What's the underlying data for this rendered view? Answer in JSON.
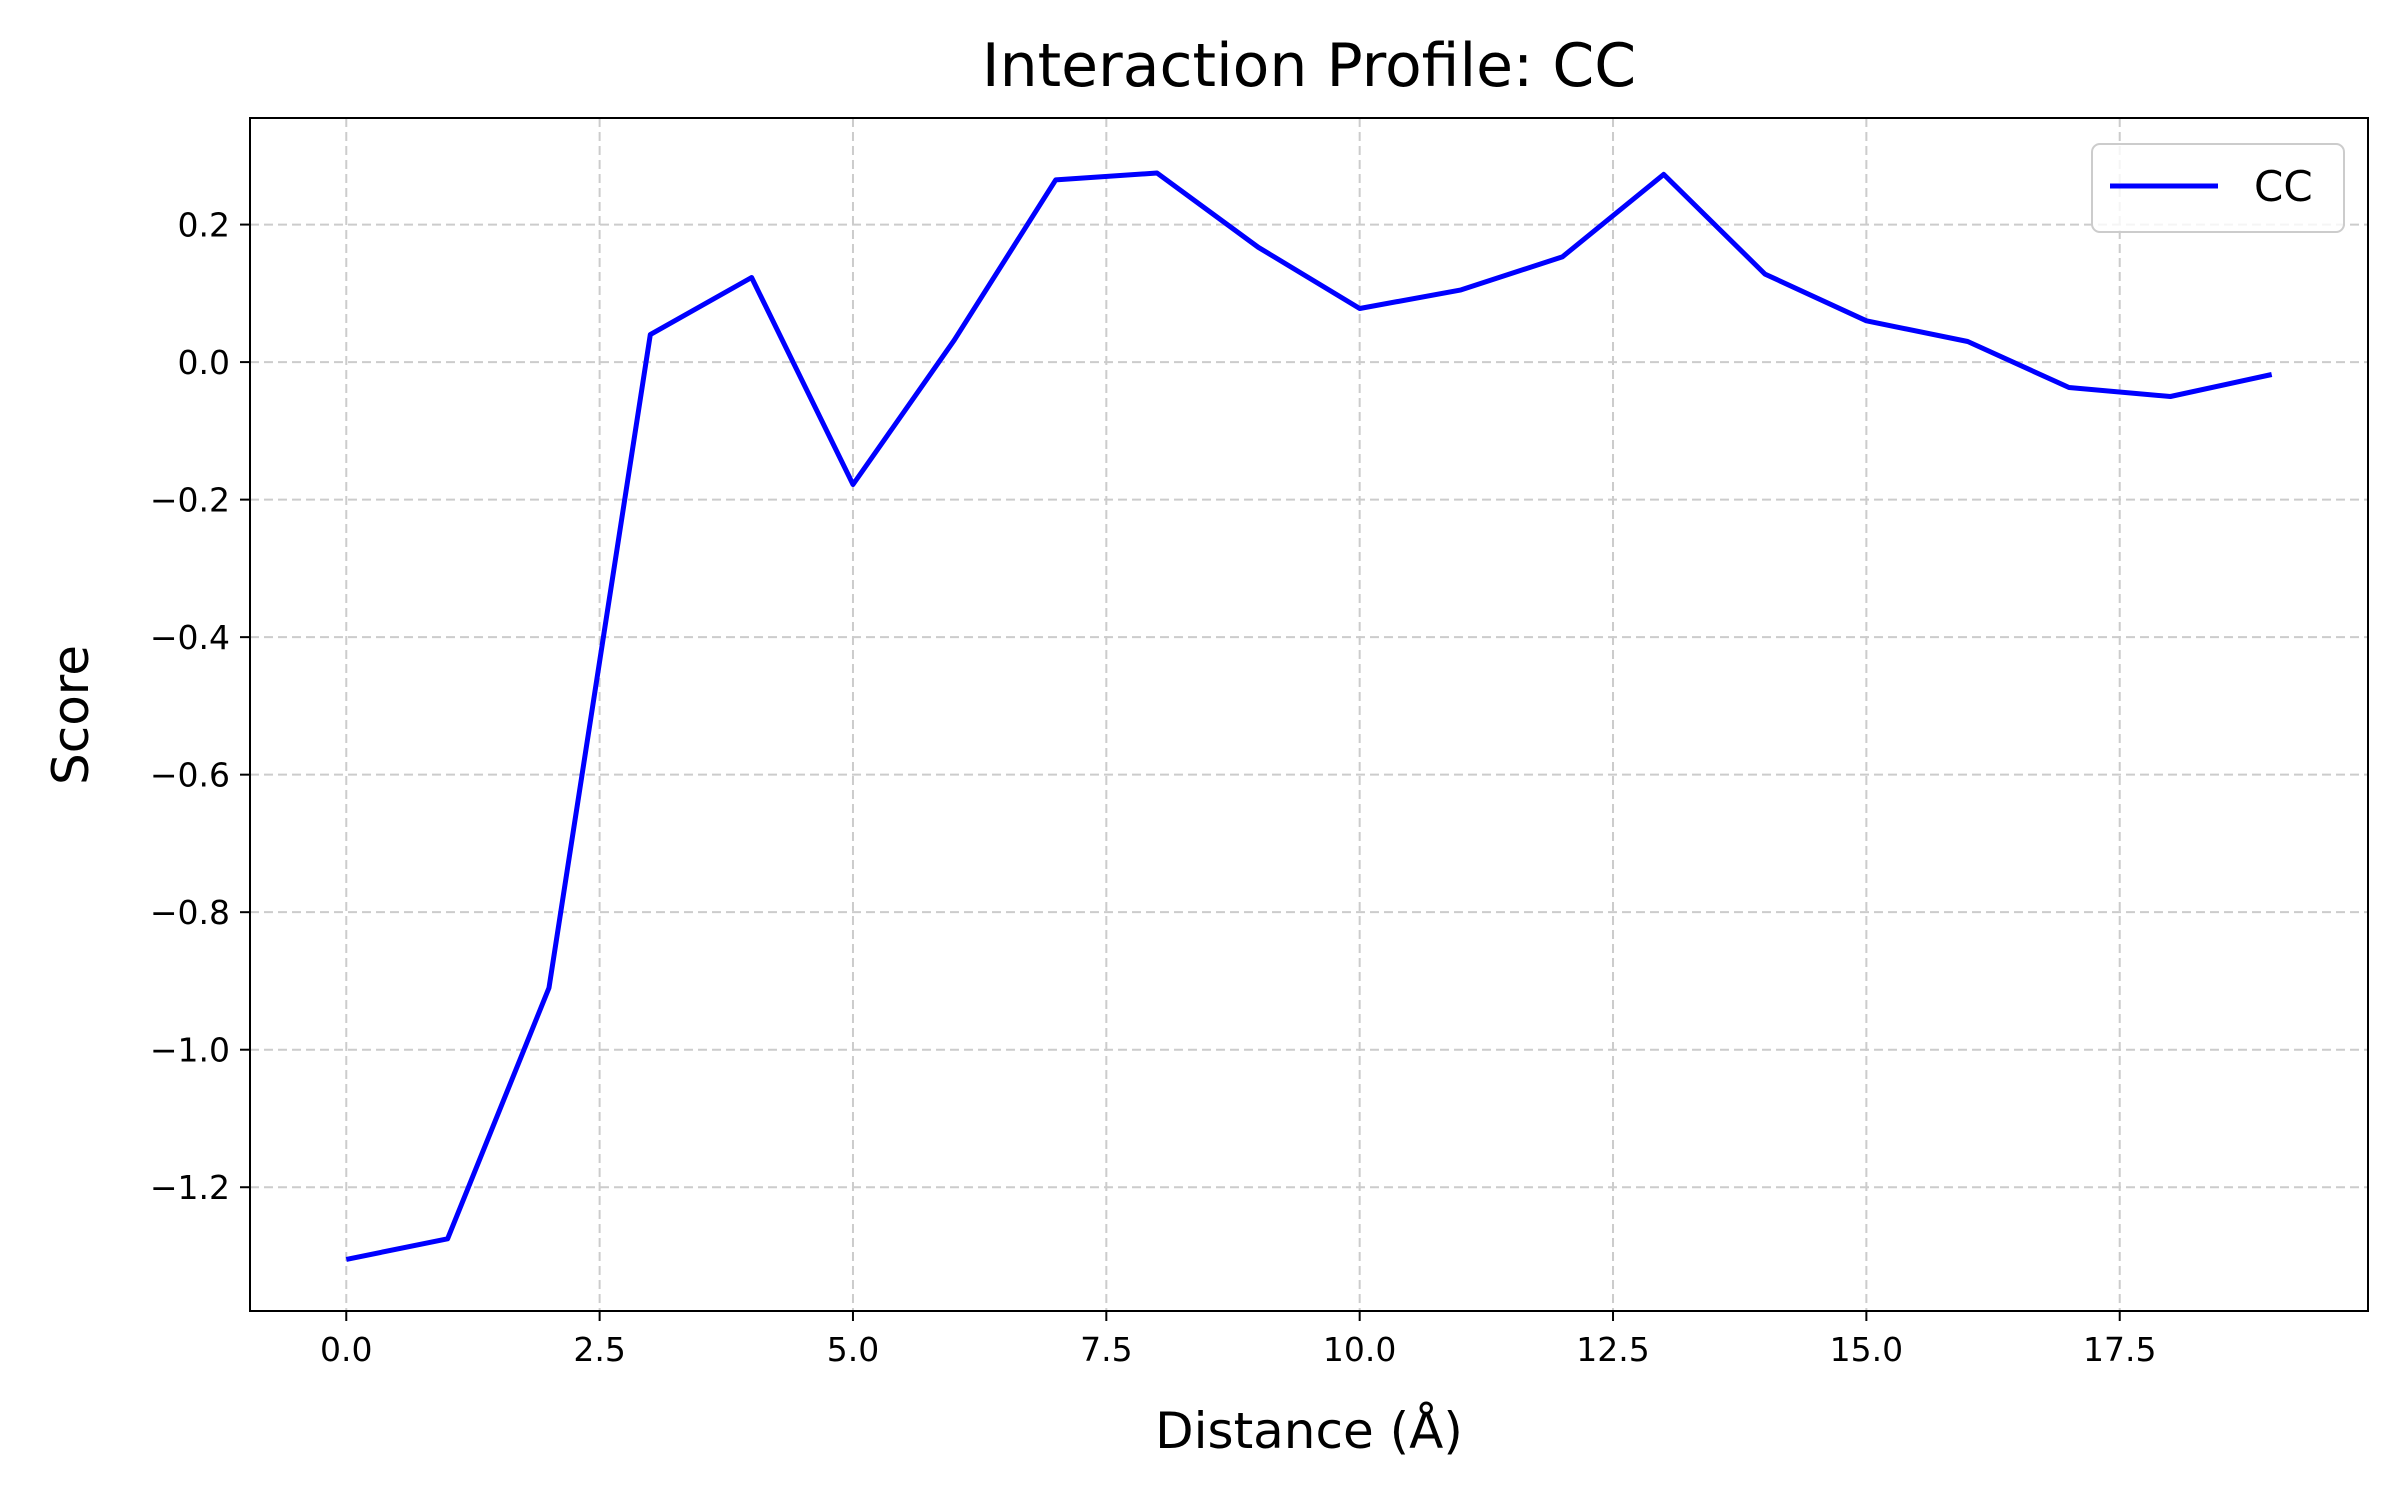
{
  "chart_data": {
    "type": "line",
    "title": "Interaction Profile: CC",
    "xlabel": "Distance (Å)",
    "ylabel": "Score",
    "xlim": [
      -0.95,
      19.95
    ],
    "ylim": [
      -1.38,
      0.355
    ],
    "x_ticks": [
      0.0,
      2.5,
      5.0,
      7.5,
      10.0,
      12.5,
      15.0,
      17.5
    ],
    "x_tick_labels": [
      "0.0",
      "2.5",
      "5.0",
      "7.5",
      "10.0",
      "12.5",
      "15.0",
      "17.5"
    ],
    "y_ticks": [
      0.2,
      0.0,
      -0.2,
      -0.4,
      -0.6,
      -0.8,
      -1.0,
      -1.2
    ],
    "y_tick_labels": [
      "0.2",
      "0.0",
      "−0.2",
      "−0.4",
      "−0.6",
      "−0.8",
      "−1.0",
      "−1.2"
    ],
    "grid": true,
    "legend_position": "top-right",
    "series": [
      {
        "name": "CC",
        "color": "#0000ff",
        "x": [
          0,
          1,
          2,
          3,
          4,
          5,
          6,
          7,
          8,
          9,
          10,
          11,
          12,
          13,
          14,
          15,
          16,
          17,
          18,
          19
        ],
        "y": [
          -1.305,
          -1.275,
          -0.91,
          0.04,
          0.123,
          -0.178,
          0.032,
          0.265,
          0.275,
          0.167,
          0.078,
          0.105,
          0.153,
          0.273,
          0.128,
          0.06,
          0.03,
          -0.037,
          -0.05,
          -0.018
        ]
      }
    ]
  }
}
